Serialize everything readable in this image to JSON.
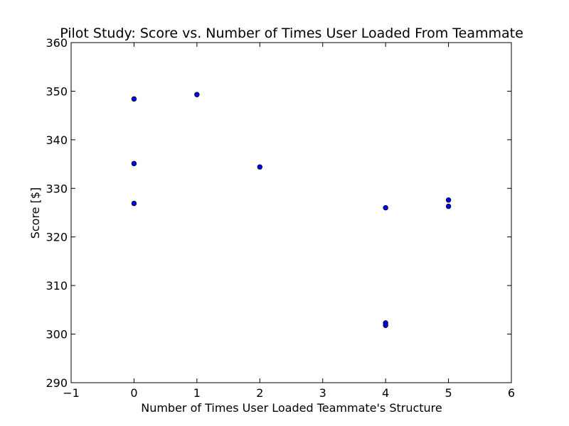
{
  "chart_data": {
    "type": "scatter",
    "title": "Pilot Study: Score vs. Number of Times User Loaded From Teammate",
    "xlabel": "Number of Times User Loaded Teammate's Structure",
    "ylabel": "Score [$]",
    "xlim": [
      -1,
      6
    ],
    "ylim": [
      290,
      360
    ],
    "x_ticks": [
      -1,
      0,
      1,
      2,
      3,
      4,
      5,
      6
    ],
    "y_ticks": [
      290,
      300,
      310,
      320,
      330,
      340,
      350,
      360
    ],
    "x_tick_labels": [
      "−1",
      "0",
      "1",
      "2",
      "3",
      "4",
      "5",
      "6"
    ],
    "y_tick_labels": [
      "290",
      "300",
      "310",
      "320",
      "330",
      "340",
      "350",
      "360"
    ],
    "grid": false,
    "marker_color": "#0000ff",
    "series": [
      {
        "points": [
          {
            "x": 0,
            "y": 348.4
          },
          {
            "x": 0,
            "y": 335.1
          },
          {
            "x": 0,
            "y": 326.9
          },
          {
            "x": 1,
            "y": 349.3
          },
          {
            "x": 2,
            "y": 334.4
          },
          {
            "x": 4,
            "y": 326.0
          },
          {
            "x": 4,
            "y": 302.3
          },
          {
            "x": 4,
            "y": 301.8
          },
          {
            "x": 5,
            "y": 327.6
          },
          {
            "x": 5,
            "y": 326.3
          }
        ]
      }
    ]
  }
}
